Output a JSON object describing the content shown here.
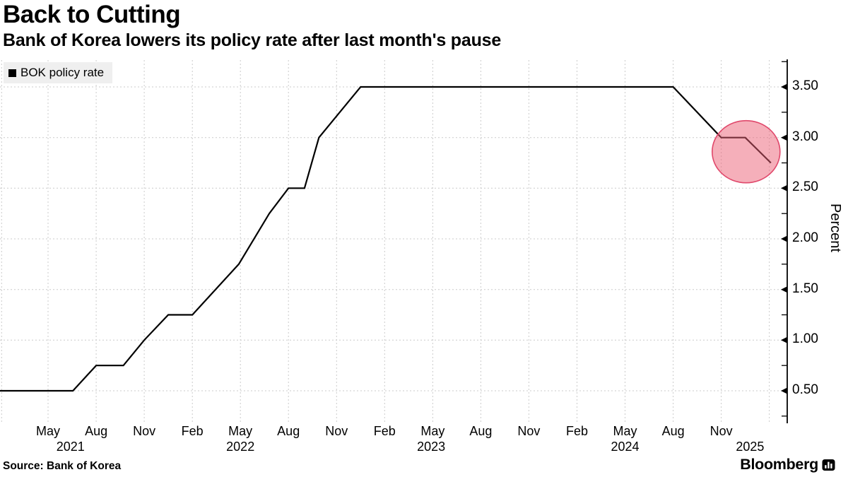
{
  "header": {
    "title": "Back to Cutting",
    "subtitle": "Bank of Korea lowers its policy rate after last month's pause"
  },
  "legend": {
    "label": "BOK policy rate",
    "swatch_color": "#000000"
  },
  "chart_data": {
    "type": "line",
    "title": "Back to Cutting",
    "subtitle": "Bank of Korea lowers its policy rate after last month's pause",
    "xlabel": "",
    "ylabel": "Percent",
    "unit": "percent",
    "grid": "on",
    "legend_position": "top-left",
    "xlim": [
      "Feb 2021",
      "Mar 2025"
    ],
    "ylim": [
      0.2,
      3.77
    ],
    "y_axis": {
      "side": "right",
      "ticks": [
        {
          "label": "0.50",
          "v": 0.5
        },
        {
          "label": "1.00",
          "v": 1.0
        },
        {
          "label": "1.50",
          "v": 1.5
        },
        {
          "label": "2.00",
          "v": 2.0
        },
        {
          "label": "2.50",
          "v": 2.5
        },
        {
          "label": "3.00",
          "v": 3.0
        },
        {
          "label": "3.50",
          "v": 3.5
        }
      ],
      "minor_ticks": [
        0.25,
        0.75,
        1.25,
        1.75,
        2.25,
        2.75,
        3.25,
        3.75
      ]
    },
    "x_axis": {
      "note": "t = months elapsed since Feb 2021 at plot left edge",
      "ticks": [
        {
          "label": "May",
          "t": 3
        },
        {
          "label": "Aug",
          "t": 6
        },
        {
          "label": "Nov",
          "t": 9
        },
        {
          "label": "Feb",
          "t": 12
        },
        {
          "label": "May",
          "t": 15
        },
        {
          "label": "Aug",
          "t": 18
        },
        {
          "label": "Nov",
          "t": 21
        },
        {
          "label": "Feb",
          "t": 24
        },
        {
          "label": "May",
          "t": 27
        },
        {
          "label": "Aug",
          "t": 30
        },
        {
          "label": "Nov",
          "t": 33
        },
        {
          "label": "Feb",
          "t": 36
        },
        {
          "label": "May",
          "t": 39
        },
        {
          "label": "Aug",
          "t": 42
        },
        {
          "label": "Nov",
          "t": 45
        }
      ],
      "year_labels": [
        {
          "label": "2021",
          "t": 4.4
        },
        {
          "label": "2022",
          "t": 15.0
        },
        {
          "label": "2023",
          "t": 26.9
        },
        {
          "label": "2024",
          "t": 39.0
        },
        {
          "label": "2025",
          "t": 46.8
        }
      ],
      "gridline_months": [
        0.1,
        3,
        6,
        9,
        12,
        15,
        18,
        21,
        24,
        27,
        30,
        33,
        36,
        39,
        42,
        45,
        48
      ]
    },
    "series": [
      {
        "name": "BOK policy rate",
        "color": "#000000",
        "points": [
          {
            "date": "Feb 2021",
            "t": 0.0,
            "v": 0.5
          },
          {
            "date": "Jun 2021",
            "t": 4.55,
            "v": 0.5
          },
          {
            "date": "Aug 2021",
            "t": 6.0,
            "v": 0.75
          },
          {
            "date": "Oct 2021",
            "t": 7.7,
            "v": 0.75
          },
          {
            "date": "Nov 2021",
            "t": 9.0,
            "v": 1.0
          },
          {
            "date": "Dec 2021",
            "t": 10.5,
            "v": 1.25
          },
          {
            "date": "Feb 2022",
            "t": 12.0,
            "v": 1.25
          },
          {
            "date": "May 2022",
            "t": 14.9,
            "v": 1.75
          },
          {
            "date": "Jul 2022",
            "t": 16.8,
            "v": 2.25
          },
          {
            "date": "Aug 2022",
            "t": 18.0,
            "v": 2.5
          },
          {
            "date": "Sep 2022",
            "t": 19.0,
            "v": 2.5
          },
          {
            "date": "Oct 2022",
            "t": 19.9,
            "v": 3.0
          },
          {
            "date": "Nov 2022",
            "t": 21.2,
            "v": 3.25
          },
          {
            "date": "Jan 2023",
            "t": 22.5,
            "v": 3.5
          },
          {
            "date": "Aug 2024",
            "t": 42.0,
            "v": 3.5
          },
          {
            "date": "Nov 2024",
            "t": 45.0,
            "v": 3.0
          },
          {
            "date": "Jan 2025",
            "t": 46.5,
            "v": 3.0
          },
          {
            "date": "Feb 2025",
            "t": 48.1,
            "v": 2.75
          }
        ]
      }
    ],
    "highlight": {
      "shape": "circle",
      "meaning": "emphasis on the latest rate cut to 2.75%",
      "t": 46.55,
      "v": 2.86,
      "fill": "#eb5f75",
      "fill_opacity": 0.5,
      "stroke": "#e0486b"
    }
  },
  "ylabel": "Percent",
  "source": {
    "text": "Source: Bank of Korea"
  },
  "branding": {
    "wordmark": "Bloomberg"
  }
}
